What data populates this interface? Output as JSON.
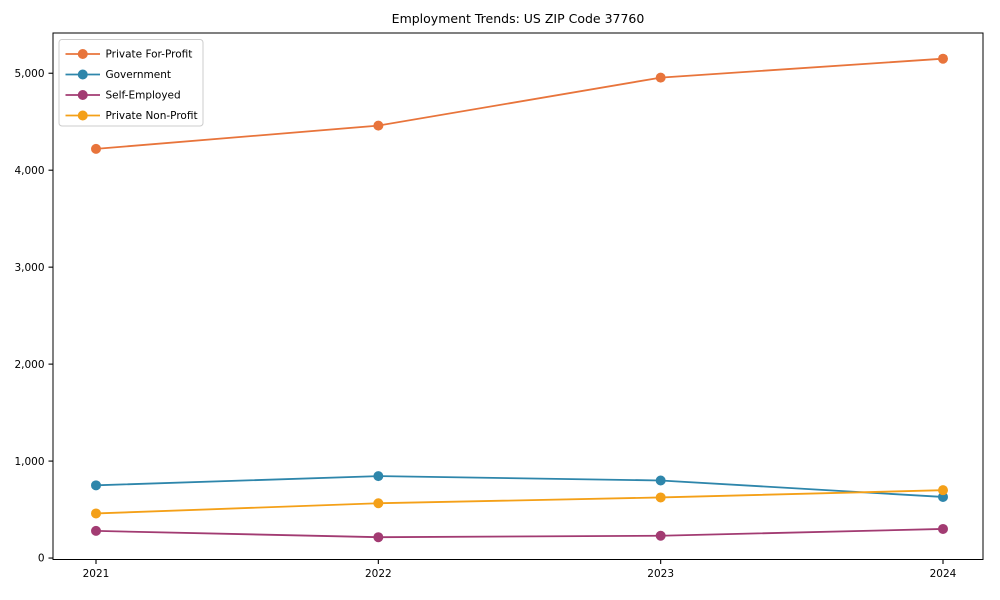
{
  "chart_data": {
    "type": "line",
    "title": "Employment Trends: US ZIP Code 37760",
    "x_categories": [
      "2021",
      "2022",
      "2023",
      "2024"
    ],
    "series": [
      {
        "name": "Private For-Profit",
        "color": "#E8743B",
        "values": [
          4220,
          4460,
          4955,
          5150
        ]
      },
      {
        "name": "Government",
        "color": "#2E86AB",
        "values": [
          750,
          845,
          800,
          630
        ]
      },
      {
        "name": "Self-Employed",
        "color": "#A23B72",
        "values": [
          280,
          215,
          230,
          300
        ]
      },
      {
        "name": "Private Non-Profit",
        "color": "#F4A018",
        "values": [
          460,
          565,
          625,
          700
        ]
      }
    ],
    "xlabel": "",
    "ylabel": "",
    "ylim": [
      -15,
      5415
    ],
    "yticks": [
      0,
      1000,
      2000,
      3000,
      4000,
      5000
    ],
    "ytick_labels": [
      "0",
      "1,000",
      "2,000",
      "3,000",
      "4,000",
      "5,000"
    ],
    "grid": false,
    "marker": "circle",
    "legend": {
      "position": "upper-left",
      "entries": [
        "Private For-Profit",
        "Government",
        "Self-Employed",
        "Private Non-Profit"
      ]
    }
  }
}
